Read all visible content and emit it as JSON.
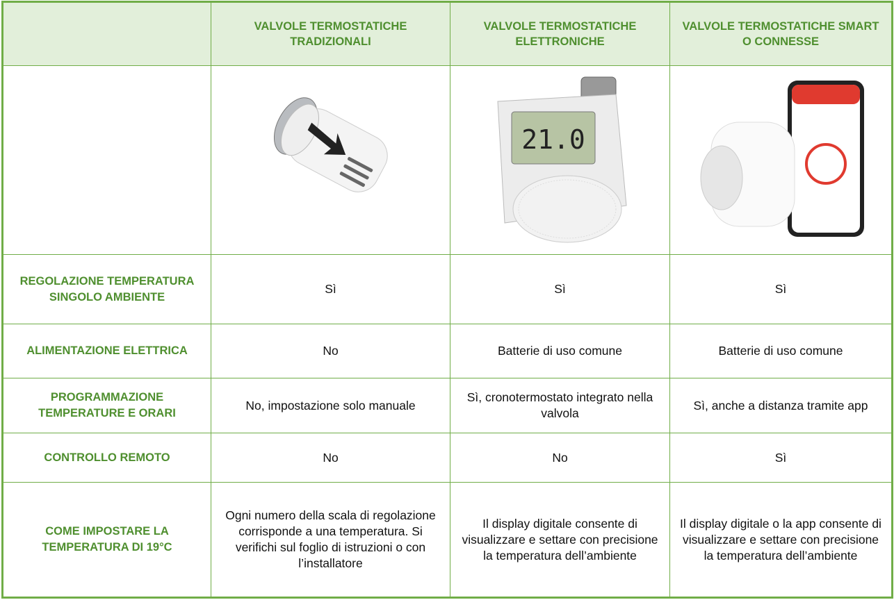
{
  "table": {
    "columns": [
      "VALVOLE TERMOSTATICHE TRADIZIONALI",
      "VALVOLE TERMOSTATICHE ELETTRONICHE",
      "VALVOLE TERMOSTATICHE SMART O CONNESSE"
    ],
    "rows": [
      {
        "label": "REGOLAZIONE TEMPERATURA SINGOLO AMBIENTE",
        "cells": [
          "Sì",
          "Sì",
          "Sì"
        ]
      },
      {
        "label": "ALIMENTAZIONE ELETTRICA",
        "cells": [
          "No",
          "Batterie di uso comune",
          "Batterie di uso comune"
        ]
      },
      {
        "label": "PROGRAMMAZIONE TEMPERATURE E ORARI",
        "cells": [
          "No, impostazione solo manuale",
          "Sì, cronotermostato integrato nella valvola",
          "Sì, anche a distanza tramite app"
        ]
      },
      {
        "label": "CONTROLLO REMOTO",
        "cells": [
          "No",
          "No",
          "Sì"
        ]
      },
      {
        "label": "COME IMPOSTARE LA TEMPERATURA DI 19°C",
        "cells": [
          "Ogni numero della scala di regolazione corrisponde a una temperatura. Si verifichi sul foglio di istruzioni o con l’installatore",
          "Il display digitale consente di visualizzare e settare con precisione la temperatura dell’ambiente",
          "Il display digitale o la app consente di visualizzare e settare con precisione la temperatura dell’ambiente"
        ]
      }
    ]
  }
}
